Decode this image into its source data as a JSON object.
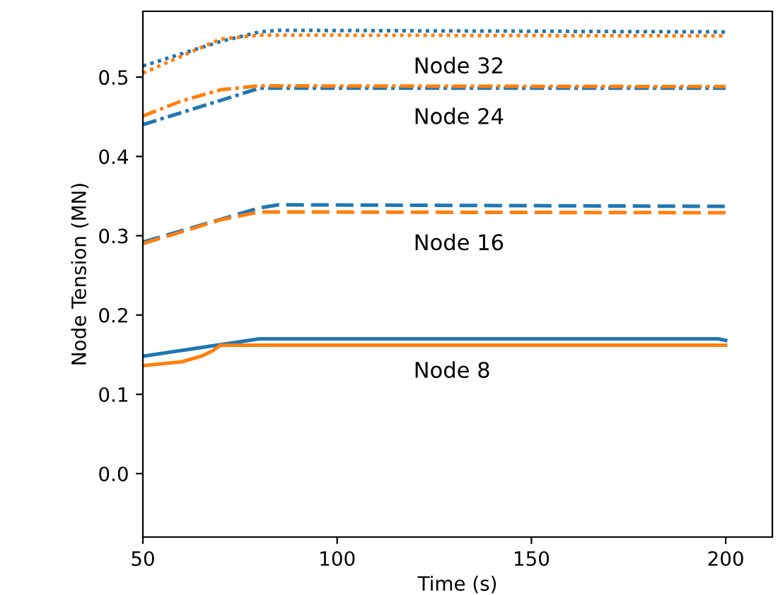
{
  "chart_data": {
    "type": "line",
    "xlabel": "Time (s)",
    "ylabel": "Node Tension (MN)",
    "xlim": [
      50,
      212
    ],
    "xticks": [
      50,
      100,
      150,
      200
    ],
    "ylim": [
      -0.08,
      0.583
    ],
    "yticks": [
      {
        "value": 0,
        "label": "0.0"
      },
      0.1,
      0.2,
      0.3,
      0.4,
      0.5
    ],
    "grid": false,
    "marker": "none",
    "series": [
      {
        "color": "#1f77b4",
        "line_style": "solid",
        "x": [
          50,
          80,
          85,
          198,
          200
        ],
        "values": [
          0.148,
          0.17,
          0.17,
          0.17,
          0.168
        ]
      },
      {
        "color": "#ff7f0e",
        "line_style": "solid",
        "x": [
          50,
          60,
          65,
          68,
          70,
          80,
          200
        ],
        "values": [
          0.136,
          0.141,
          0.148,
          0.155,
          0.162,
          0.162,
          0.162
        ]
      },
      {
        "color": "#1f77b4",
        "line_style": "dashed",
        "x": [
          50,
          80,
          85,
          200
        ],
        "values": [
          0.292,
          0.335,
          0.339,
          0.337
        ]
      },
      {
        "color": "#ff7f0e",
        "line_style": "dashed",
        "x": [
          50,
          70,
          80,
          200
        ],
        "values": [
          0.29,
          0.32,
          0.33,
          0.329
        ]
      },
      {
        "color": "#1f77b4",
        "line_style": "dashdot",
        "x": [
          50,
          80,
          200
        ],
        "values": [
          0.44,
          0.486,
          0.486
        ]
      },
      {
        "color": "#ff7f0e",
        "line_style": "dashdot",
        "x": [
          50,
          60,
          70,
          80,
          200
        ],
        "values": [
          0.451,
          0.47,
          0.484,
          0.489,
          0.488
        ]
      },
      {
        "color": "#1f77b4",
        "line_style": "dotted",
        "x": [
          50,
          70,
          80,
          85,
          200
        ],
        "values": [
          0.514,
          0.545,
          0.557,
          0.559,
          0.557
        ]
      },
      {
        "color": "#ff7f0e",
        "line_style": "dotted",
        "x": [
          50,
          70,
          80,
          200
        ],
        "values": [
          0.505,
          0.548,
          0.553,
          0.552
        ]
      }
    ],
    "annotations": [
      "Node 32",
      "Node 24",
      "Node 16",
      "Node 8"
    ]
  }
}
